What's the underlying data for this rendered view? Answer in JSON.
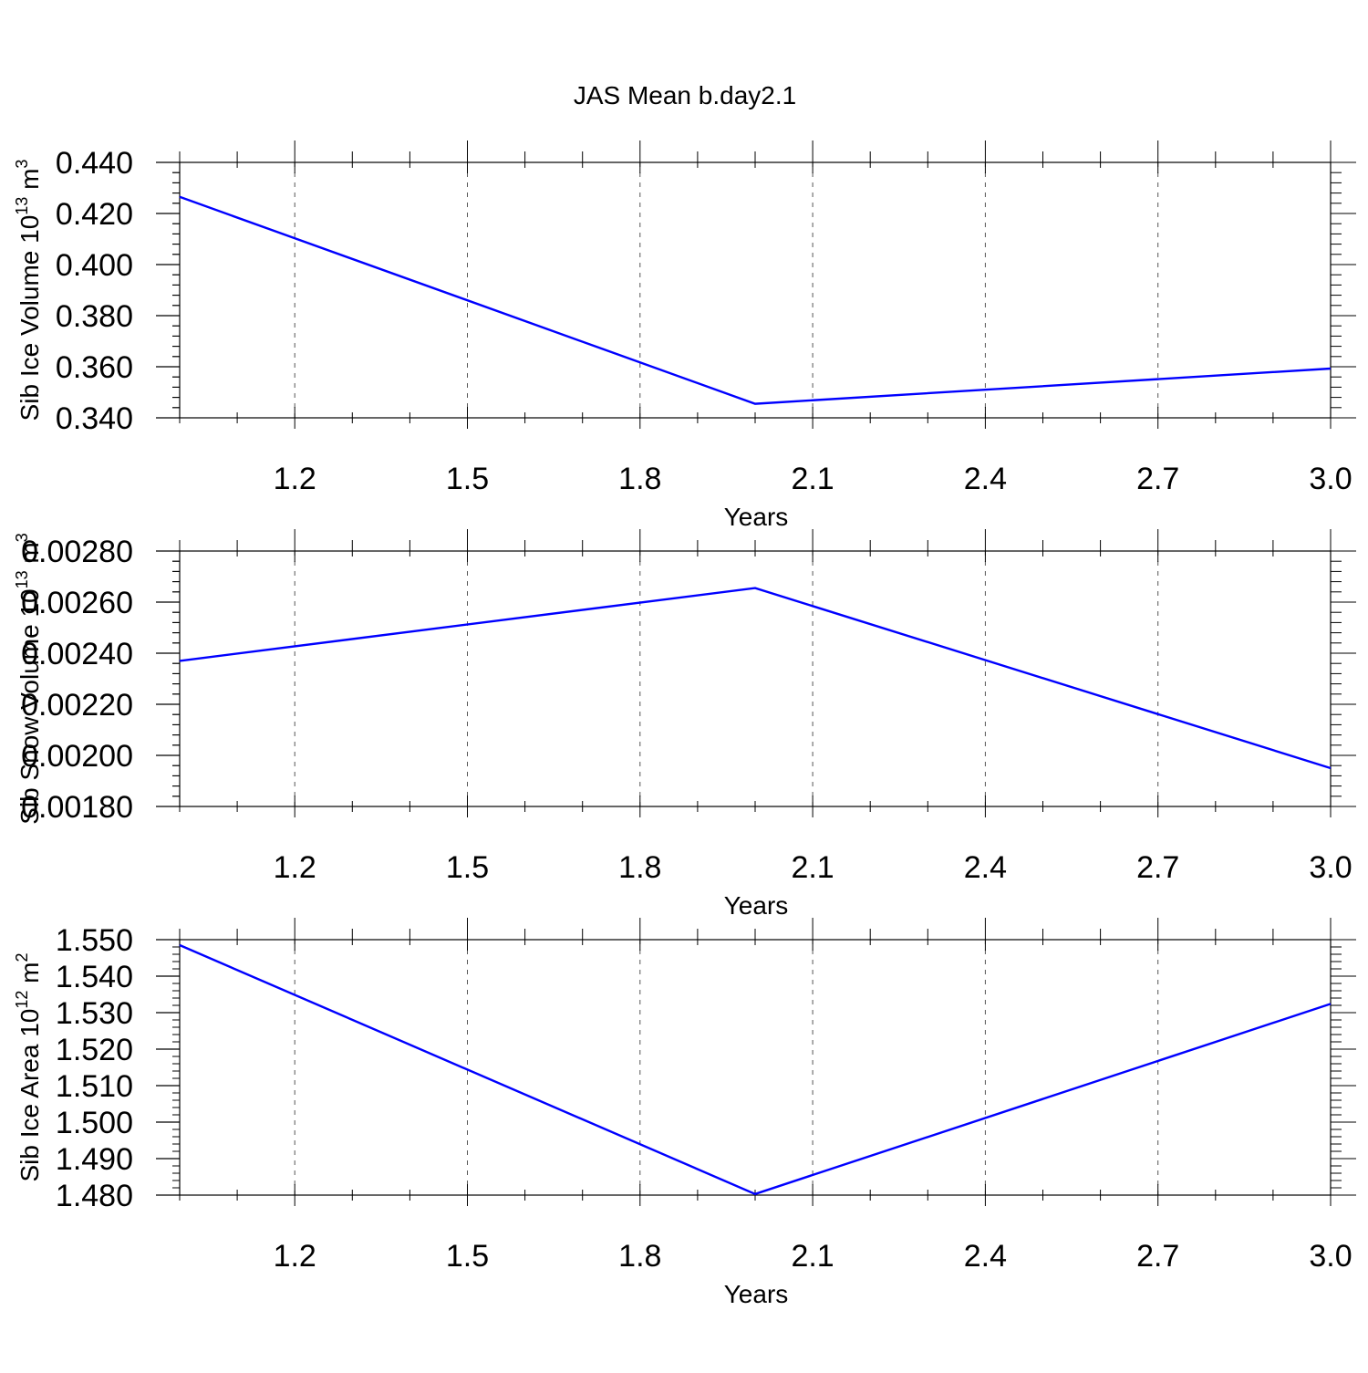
{
  "title": "JAS Mean b.day2.1",
  "colors": {
    "line": "#0000ff",
    "axis": "#000000",
    "grid": "#555555"
  },
  "chart_data": [
    {
      "type": "line",
      "xlabel": "Years",
      "ylabel": "Sib Ice Volume 10",
      "ylabel_sup": "13",
      "ylabel_unit": " m",
      "ylabel_unit_sup": "3",
      "x": [
        1.0,
        2.0,
        3.0
      ],
      "values": [
        0.4265,
        0.3455,
        0.3593
      ],
      "xlim": [
        1.0,
        3.0
      ],
      "ylim": [
        0.34,
        0.44
      ],
      "xticks": [
        1.2,
        1.5,
        1.8,
        2.1,
        2.4,
        2.7,
        3.0
      ],
      "xtick_labels": [
        "1.2",
        "1.5",
        "1.8",
        "2.1",
        "2.4",
        "2.7",
        "3.0"
      ],
      "yticks": [
        0.34,
        0.36,
        0.38,
        0.4,
        0.42,
        0.44
      ],
      "ytick_labels": [
        "0.340",
        "0.360",
        "0.380",
        "0.400",
        "0.420",
        "0.440"
      ],
      "yminor": 0.004,
      "grid": true
    },
    {
      "type": "line",
      "xlabel": "Years",
      "ylabel": "Sib Snow Volume 10",
      "ylabel_sup": "13",
      "ylabel_unit": " m",
      "ylabel_unit_sup": "3",
      "x": [
        1.0,
        2.0,
        3.0
      ],
      "values": [
        0.00237,
        0.002655,
        0.00195
      ],
      "xlim": [
        1.0,
        3.0
      ],
      "ylim": [
        0.0018,
        0.0028
      ],
      "xticks": [
        1.2,
        1.5,
        1.8,
        2.1,
        2.4,
        2.7,
        3.0
      ],
      "xtick_labels": [
        "1.2",
        "1.5",
        "1.8",
        "2.1",
        "2.4",
        "2.7",
        "3.0"
      ],
      "yticks": [
        0.0018,
        0.002,
        0.0022,
        0.0024,
        0.0026,
        0.0028
      ],
      "ytick_labels": [
        "0.00180",
        "0.00200",
        "0.00220",
        "0.00240",
        "0.00260",
        "0.00280"
      ],
      "yminor": 4e-05,
      "grid": true
    },
    {
      "type": "line",
      "xlabel": "Years",
      "ylabel": "Sib Ice Area 10",
      "ylabel_sup": "12",
      "ylabel_unit": " m",
      "ylabel_unit_sup": "2",
      "x": [
        1.0,
        2.0,
        3.0
      ],
      "values": [
        1.5485,
        1.4803,
        1.5324
      ],
      "xlim": [
        1.0,
        3.0
      ],
      "ylim": [
        1.48,
        1.55
      ],
      "xticks": [
        1.2,
        1.5,
        1.8,
        2.1,
        2.4,
        2.7,
        3.0
      ],
      "xtick_labels": [
        "1.2",
        "1.5",
        "1.8",
        "2.1",
        "2.4",
        "2.7",
        "3.0"
      ],
      "yticks": [
        1.48,
        1.49,
        1.5,
        1.51,
        1.52,
        1.53,
        1.54,
        1.55
      ],
      "ytick_labels": [
        "1.480",
        "1.490",
        "1.500",
        "1.510",
        "1.520",
        "1.530",
        "1.540",
        "1.550"
      ],
      "yminor": 0.002,
      "grid": true
    }
  ]
}
